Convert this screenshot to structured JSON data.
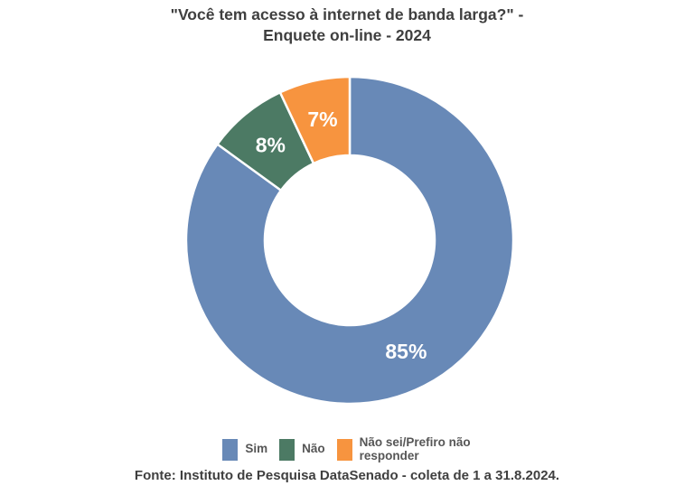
{
  "title": {
    "line1": "\"Você tem acesso à internet de banda larga?\" -",
    "line2": "Enquete on-line - 2024"
  },
  "chart_data": {
    "type": "pie",
    "subtype": "donut",
    "title": "\"Você tem acesso à internet de banda larga?\" - Enquete on-line - 2024",
    "categories": [
      "Sim",
      "Não",
      "Não sei/Prefiro não responder"
    ],
    "values": [
      85,
      8,
      7
    ],
    "unit": "%",
    "data_labels": [
      "85%",
      "8%",
      "7%"
    ],
    "colors": [
      "#6889B7",
      "#4C7A64",
      "#F7943F"
    ],
    "ids": [
      "sim",
      "nao",
      "nao-sei"
    ],
    "start_angle_deg": 0,
    "direction": "clockwise",
    "inner_radius_ratio": 0.52,
    "slice_border_color": "#FFFFFF",
    "data_label_color": "#FFFFFF",
    "legend_position": "bottom"
  },
  "legend": {
    "items": [
      {
        "label": "Sim",
        "color": "#6889B7"
      },
      {
        "label": "Não",
        "color": "#4C7A64"
      },
      {
        "label": "Não sei/Prefiro não responder",
        "color": "#F7943F"
      }
    ]
  },
  "footer": "Fonte: Instituto de Pesquisa DataSenado - coleta de 1 a 31.8.2024."
}
